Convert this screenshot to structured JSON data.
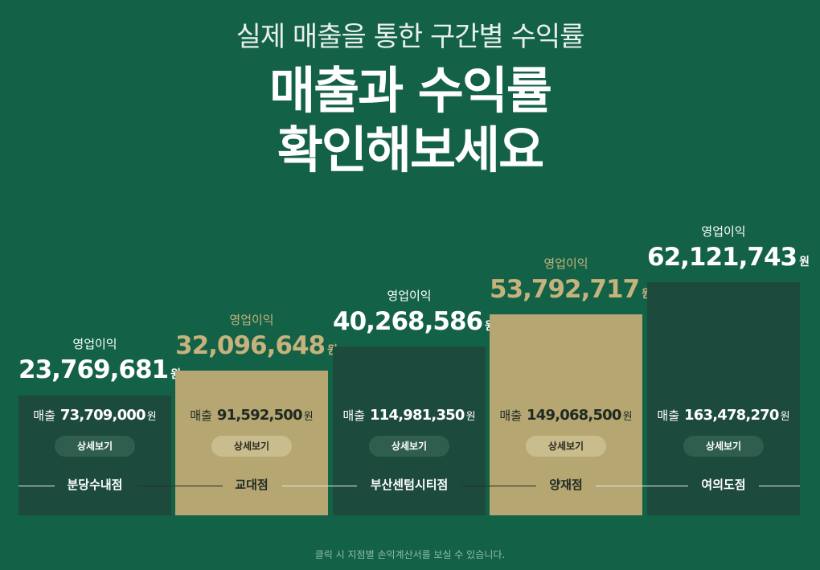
{
  "header": {
    "subtitle": "실제 매출을 통한 구간별 수익률",
    "title_line1": "매출과 수익률",
    "title_line2": "확인해보세요"
  },
  "branches": [
    {
      "name": "분당수내점",
      "profit_label": "영업이익",
      "profit": "23,769,681",
      "sales_label": "매출",
      "sales": "73,709,000",
      "unit": "원",
      "detail": "상세보기",
      "theme": "dark"
    },
    {
      "name": "교대점",
      "profit_label": "영업이익",
      "profit": "32,096,648",
      "sales_label": "매출",
      "sales": "91,592,500",
      "unit": "원",
      "detail": "상세보기",
      "theme": "gold"
    },
    {
      "name": "부산센텀시티점",
      "profit_label": "영업이익",
      "profit": "40,268,586",
      "sales_label": "매출",
      "sales": "114,981,350",
      "unit": "원",
      "detail": "상세보기",
      "theme": "dark"
    },
    {
      "name": "양재점",
      "profit_label": "영업이익",
      "profit": "53,792,717",
      "sales_label": "매출",
      "sales": "149,068,500",
      "unit": "원",
      "detail": "상세보기",
      "theme": "gold"
    },
    {
      "name": "여의도점",
      "profit_label": "영업이익",
      "profit": "62,121,743",
      "sales_label": "매출",
      "sales": "163,478,270",
      "unit": "원",
      "detail": "상세보기",
      "theme": "dark"
    }
  ],
  "colors": {
    "dark_bar": "#1c4a3c",
    "gold_bar": "#b5a672",
    "gold_text": "#c5b27c",
    "background": "#136147"
  },
  "footer": "클릭 시 지점별 손익계산서를 보실 수 있습니다."
}
